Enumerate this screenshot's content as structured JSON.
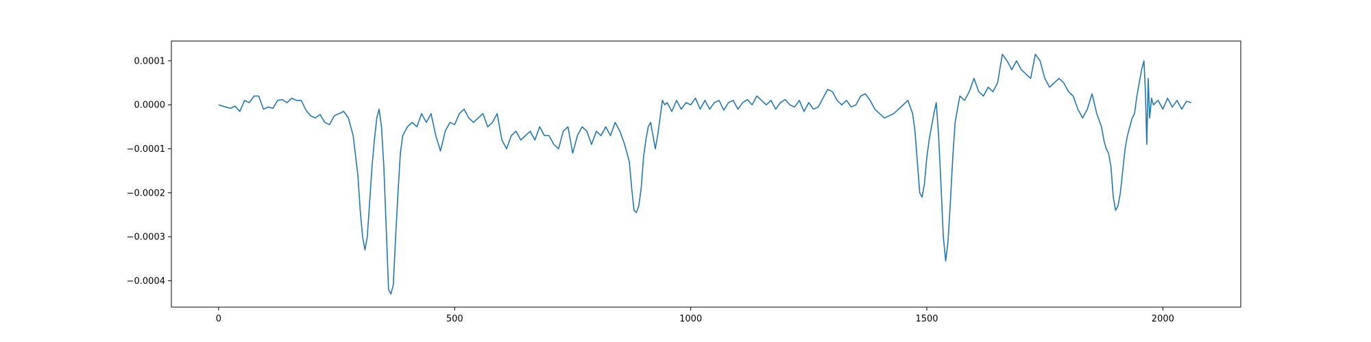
{
  "chart_data": {
    "type": "line",
    "title": "",
    "xlabel": "",
    "ylabel": "",
    "xlim": [
      -100,
      2165
    ],
    "ylim": [
      -0.00046,
      0.000145
    ],
    "x_ticks": [
      0,
      500,
      1000,
      1500,
      2000
    ],
    "x_tick_labels": [
      "0",
      "500",
      "1000",
      "1500",
      "2000"
    ],
    "y_ticks": [
      0.0001,
      0.0,
      -0.0001,
      -0.0002,
      -0.0003,
      -0.0004
    ],
    "y_tick_labels": [
      "0.0001",
      "0.0000",
      "−0.0001",
      "−0.0002",
      "−0.0003",
      "−0.0004"
    ],
    "grid": false,
    "legend": "none",
    "series": [
      {
        "color": "#1f77b4",
        "points": [
          [
            0,
            0.0
          ],
          [
            15,
            -5e-06
          ],
          [
            25,
            -8e-06
          ],
          [
            35,
            -3e-06
          ],
          [
            45,
            -1.5e-05
          ],
          [
            55,
            1e-05
          ],
          [
            65,
            5e-06
          ],
          [
            75,
            2e-05
          ],
          [
            85,
            2e-05
          ],
          [
            95,
            -1e-05
          ],
          [
            105,
            -5e-06
          ],
          [
            115,
            -8e-06
          ],
          [
            125,
            1e-05
          ],
          [
            135,
            1.2e-05
          ],
          [
            145,
            5e-06
          ],
          [
            155,
            1.5e-05
          ],
          [
            165,
            1e-05
          ],
          [
            175,
            1e-05
          ],
          [
            185,
            -1.2e-05
          ],
          [
            195,
            -2.5e-05
          ],
          [
            205,
            -3e-05
          ],
          [
            215,
            -2.2e-05
          ],
          [
            225,
            -4e-05
          ],
          [
            235,
            -4.5e-05
          ],
          [
            245,
            -2.5e-05
          ],
          [
            255,
            -2e-05
          ],
          [
            265,
            -1.5e-05
          ],
          [
            275,
            -3e-05
          ],
          [
            285,
            -7e-05
          ],
          [
            295,
            -0.00016
          ],
          [
            300,
            -0.00024
          ],
          [
            305,
            -0.0003
          ],
          [
            310,
            -0.00033
          ],
          [
            315,
            -0.0003
          ],
          [
            320,
            -0.00022
          ],
          [
            325,
            -0.00014
          ],
          [
            330,
            -8e-05
          ],
          [
            335,
            -3e-05
          ],
          [
            340,
            -1e-05
          ],
          [
            345,
            -5e-05
          ],
          [
            350,
            -0.00014
          ],
          [
            355,
            -0.00028
          ],
          [
            360,
            -0.00042
          ],
          [
            365,
            -0.00043
          ],
          [
            370,
            -0.00041
          ],
          [
            375,
            -0.0003
          ],
          [
            380,
            -0.0002
          ],
          [
            385,
            -0.00011
          ],
          [
            390,
            -7e-05
          ],
          [
            400,
            -5e-05
          ],
          [
            410,
            -4e-05
          ],
          [
            420,
            -5e-05
          ],
          [
            430,
            -2e-05
          ],
          [
            440,
            -4e-05
          ],
          [
            450,
            -2e-05
          ],
          [
            460,
            -7e-05
          ],
          [
            470,
            -0.000105
          ],
          [
            480,
            -6e-05
          ],
          [
            490,
            -4e-05
          ],
          [
            500,
            -4.5e-05
          ],
          [
            510,
            -2e-05
          ],
          [
            520,
            -1e-05
          ],
          [
            530,
            -3e-05
          ],
          [
            540,
            -4e-05
          ],
          [
            550,
            -3e-05
          ],
          [
            560,
            -2e-05
          ],
          [
            570,
            -5e-05
          ],
          [
            580,
            -4e-05
          ],
          [
            590,
            -2e-05
          ],
          [
            600,
            -8e-05
          ],
          [
            610,
            -0.0001
          ],
          [
            620,
            -7e-05
          ],
          [
            630,
            -6e-05
          ],
          [
            640,
            -8e-05
          ],
          [
            650,
            -7e-05
          ],
          [
            660,
            -6e-05
          ],
          [
            670,
            -8e-05
          ],
          [
            680,
            -5e-05
          ],
          [
            690,
            -7e-05
          ],
          [
            700,
            -7e-05
          ],
          [
            710,
            -9e-05
          ],
          [
            720,
            -0.0001
          ],
          [
            730,
            -6e-05
          ],
          [
            740,
            -5e-05
          ],
          [
            750,
            -0.00011
          ],
          [
            760,
            -7e-05
          ],
          [
            770,
            -5e-05
          ],
          [
            780,
            -6e-05
          ],
          [
            790,
            -9e-05
          ],
          [
            800,
            -6e-05
          ],
          [
            810,
            -7e-05
          ],
          [
            820,
            -5e-05
          ],
          [
            830,
            -7e-05
          ],
          [
            840,
            -4e-05
          ],
          [
            850,
            -6e-05
          ],
          [
            860,
            -9e-05
          ],
          [
            870,
            -0.00013
          ],
          [
            875,
            -0.00019
          ],
          [
            880,
            -0.00024
          ],
          [
            885,
            -0.000245
          ],
          [
            890,
            -0.00023
          ],
          [
            895,
            -0.00019
          ],
          [
            900,
            -0.00012
          ],
          [
            905,
            -8e-05
          ],
          [
            910,
            -5e-05
          ],
          [
            915,
            -4e-05
          ],
          [
            920,
            -7e-05
          ],
          [
            925,
            -0.0001
          ],
          [
            930,
            -7e-05
          ],
          [
            935,
            -3e-05
          ],
          [
            940,
            1e-05
          ],
          [
            945,
            0.0
          ],
          [
            950,
            5e-06
          ],
          [
            960,
            -1.5e-05
          ],
          [
            970,
            1e-05
          ],
          [
            980,
            -1e-05
          ],
          [
            990,
            5e-06
          ],
          [
            1000,
            0.0
          ],
          [
            1010,
            1.5e-05
          ],
          [
            1020,
            -1e-05
          ],
          [
            1030,
            1e-05
          ],
          [
            1040,
            -1e-05
          ],
          [
            1050,
            5e-06
          ],
          [
            1060,
            1e-05
          ],
          [
            1070,
            -1.2e-05
          ],
          [
            1080,
            5e-06
          ],
          [
            1090,
            1e-05
          ],
          [
            1100,
            -1e-05
          ],
          [
            1110,
            5e-06
          ],
          [
            1120,
            1.2e-05
          ],
          [
            1130,
            0.0
          ],
          [
            1140,
            2e-05
          ],
          [
            1150,
            1e-05
          ],
          [
            1160,
            0.0
          ],
          [
            1170,
            1e-05
          ],
          [
            1180,
            -1e-05
          ],
          [
            1190,
            5e-06
          ],
          [
            1200,
            1.2e-05
          ],
          [
            1210,
            0.0
          ],
          [
            1220,
            -5e-06
          ],
          [
            1230,
            1e-05
          ],
          [
            1240,
            -1.5e-05
          ],
          [
            1250,
            5e-06
          ],
          [
            1260,
            -1e-05
          ],
          [
            1270,
            -5e-06
          ],
          [
            1280,
            1.5e-05
          ],
          [
            1290,
            3.5e-05
          ],
          [
            1300,
            3e-05
          ],
          [
            1310,
            1e-05
          ],
          [
            1320,
            0.0
          ],
          [
            1330,
            1e-05
          ],
          [
            1340,
            -5e-06
          ],
          [
            1350,
            0.0
          ],
          [
            1360,
            2e-05
          ],
          [
            1370,
            2.5e-05
          ],
          [
            1380,
            1e-05
          ],
          [
            1390,
            -1e-05
          ],
          [
            1400,
            -2e-05
          ],
          [
            1410,
            -3e-05
          ],
          [
            1420,
            -2.5e-05
          ],
          [
            1430,
            -2e-05
          ],
          [
            1440,
            -1e-05
          ],
          [
            1450,
            0.0
          ],
          [
            1460,
            1e-05
          ],
          [
            1470,
            -2e-05
          ],
          [
            1475,
            -6e-05
          ],
          [
            1480,
            -0.00013
          ],
          [
            1485,
            -0.0002
          ],
          [
            1490,
            -0.00021
          ],
          [
            1495,
            -0.00018
          ],
          [
            1500,
            -0.00012
          ],
          [
            1505,
            -8e-05
          ],
          [
            1510,
            -5e-05
          ],
          [
            1515,
            -2e-05
          ],
          [
            1520,
            5e-06
          ],
          [
            1525,
            -7e-05
          ],
          [
            1530,
            -0.00018
          ],
          [
            1535,
            -0.0003
          ],
          [
            1540,
            -0.000355
          ],
          [
            1545,
            -0.00031
          ],
          [
            1550,
            -0.00022
          ],
          [
            1555,
            -0.00012
          ],
          [
            1560,
            -4e-05
          ],
          [
            1565,
            -1e-05
          ],
          [
            1570,
            2e-05
          ],
          [
            1580,
            1e-05
          ],
          [
            1590,
            3e-05
          ],
          [
            1600,
            6e-05
          ],
          [
            1610,
            3e-05
          ],
          [
            1620,
            2e-05
          ],
          [
            1630,
            4e-05
          ],
          [
            1640,
            3e-05
          ],
          [
            1650,
            5e-05
          ],
          [
            1660,
            0.000115
          ],
          [
            1670,
            0.0001
          ],
          [
            1680,
            8e-05
          ],
          [
            1690,
            0.0001
          ],
          [
            1700,
            8e-05
          ],
          [
            1710,
            7e-05
          ],
          [
            1720,
            6e-05
          ],
          [
            1730,
            0.000115
          ],
          [
            1740,
            0.0001
          ],
          [
            1750,
            6e-05
          ],
          [
            1760,
            4e-05
          ],
          [
            1770,
            5e-05
          ],
          [
            1780,
            6e-05
          ],
          [
            1790,
            5e-05
          ],
          [
            1800,
            3e-05
          ],
          [
            1810,
            2e-05
          ],
          [
            1820,
            -1e-05
          ],
          [
            1830,
            -3e-05
          ],
          [
            1840,
            -1e-05
          ],
          [
            1850,
            2.5e-05
          ],
          [
            1860,
            -2e-05
          ],
          [
            1870,
            -5e-05
          ],
          [
            1875,
            -8e-05
          ],
          [
            1880,
            -0.0001
          ],
          [
            1885,
            -0.00011
          ],
          [
            1890,
            -0.00014
          ],
          [
            1895,
            -0.00021
          ],
          [
            1900,
            -0.00024
          ],
          [
            1905,
            -0.00023
          ],
          [
            1910,
            -0.0002
          ],
          [
            1915,
            -0.00015
          ],
          [
            1920,
            -0.0001
          ],
          [
            1925,
            -7e-05
          ],
          [
            1930,
            -5e-05
          ],
          [
            1935,
            -3e-05
          ],
          [
            1940,
            -2e-05
          ],
          [
            1945,
            2e-05
          ],
          [
            1950,
            5e-05
          ],
          [
            1955,
            8e-05
          ],
          [
            1960,
            0.0001
          ],
          [
            1963,
            3e-05
          ],
          [
            1966,
            -9e-05
          ],
          [
            1969,
            6e-05
          ],
          [
            1972,
            -3e-05
          ],
          [
            1976,
            1.5e-05
          ],
          [
            1980,
            0.0
          ],
          [
            1990,
            1e-05
          ],
          [
            2000,
            -1e-05
          ],
          [
            2010,
            1.5e-05
          ],
          [
            2020,
            -5e-06
          ],
          [
            2030,
            1e-05
          ],
          [
            2040,
            -1e-05
          ],
          [
            2050,
            8e-06
          ],
          [
            2060,
            5e-06
          ]
        ]
      }
    ]
  }
}
